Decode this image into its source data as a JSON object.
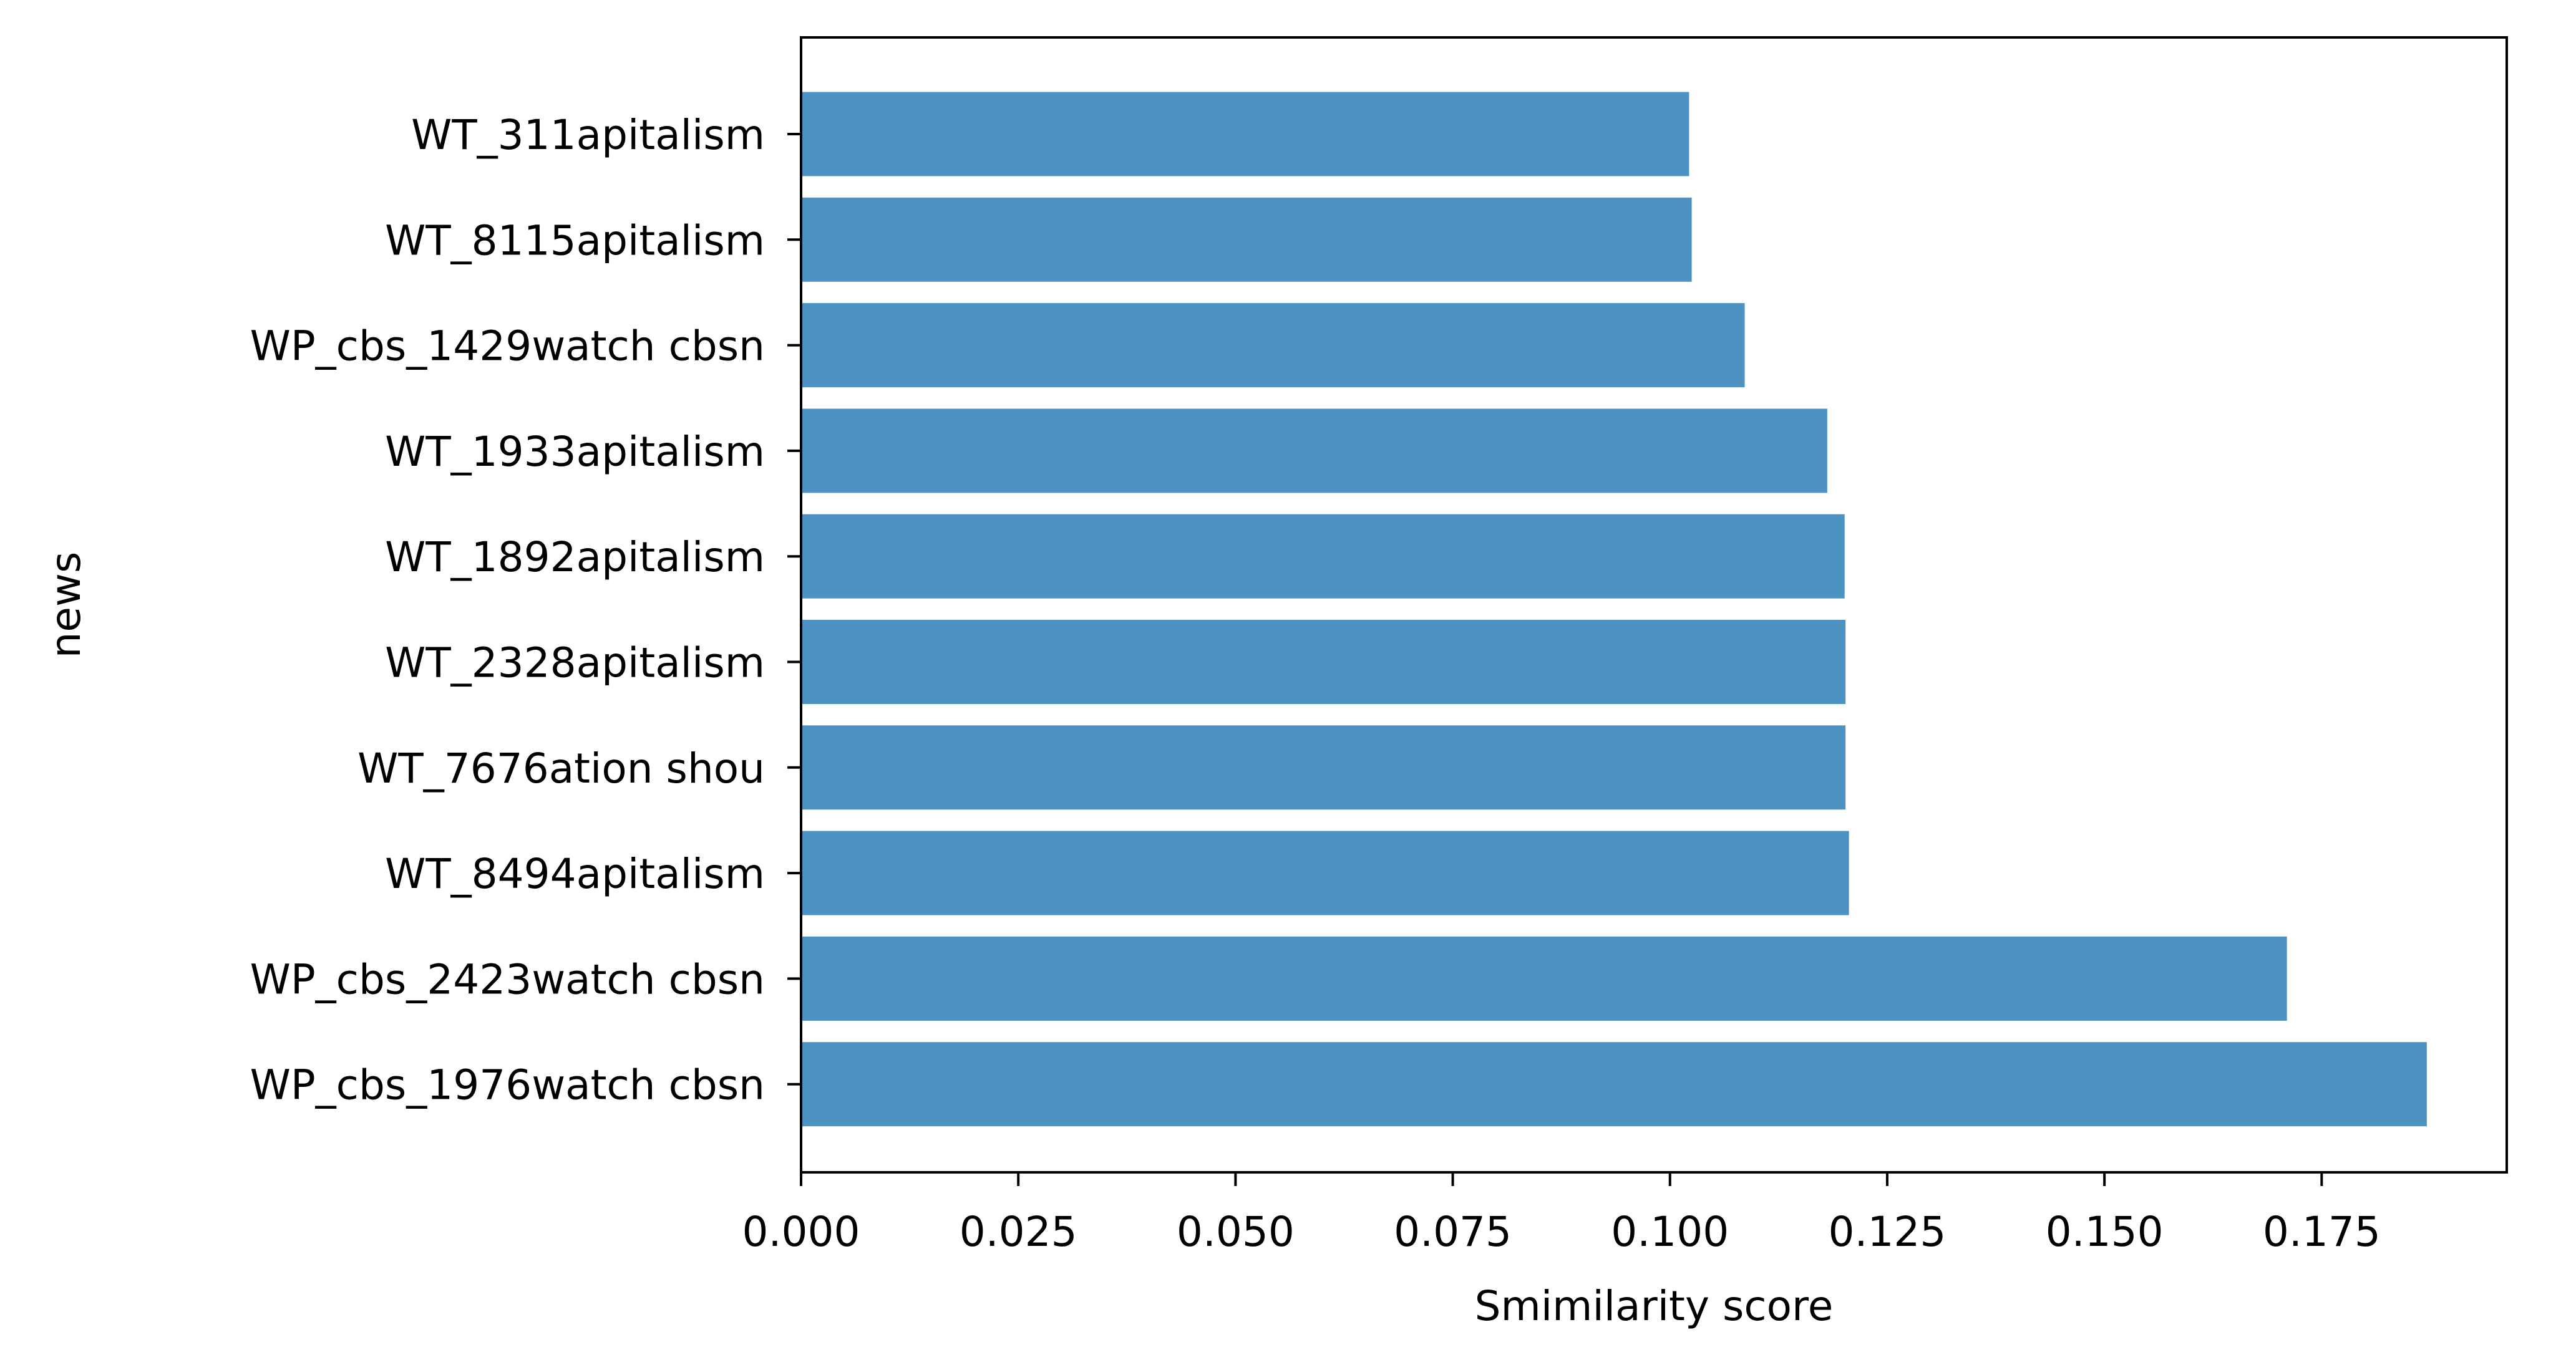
{
  "chart_data": {
    "type": "bar",
    "orientation": "horizontal",
    "xlabel": "Smimilarity score",
    "ylabel": "news",
    "xlim": [
      0,
      0.1963
    ],
    "xticks": [
      "0.000",
      "0.025",
      "0.050",
      "0.075",
      "0.100",
      "0.125",
      "0.150",
      "0.175"
    ],
    "grid": false,
    "bar_color": "#4c92c3",
    "categories": [
      "WT_311apitalism ",
      "WT_8115apitalism ",
      "WP_cbs_1429watch cbsn",
      "WT_1933apitalism ",
      "WT_1892apitalism ",
      "WT_2328apitalism ",
      "WT_7676ation shou",
      "WT_8494apitalism ",
      "WP_cbs_2423watch cbsn",
      "WP_cbs_1976watch cbsn"
    ],
    "values": [
      0.1022,
      0.1025,
      0.1086,
      0.1181,
      0.1201,
      0.1202,
      0.1202,
      0.1206,
      0.171,
      0.1871
    ]
  }
}
